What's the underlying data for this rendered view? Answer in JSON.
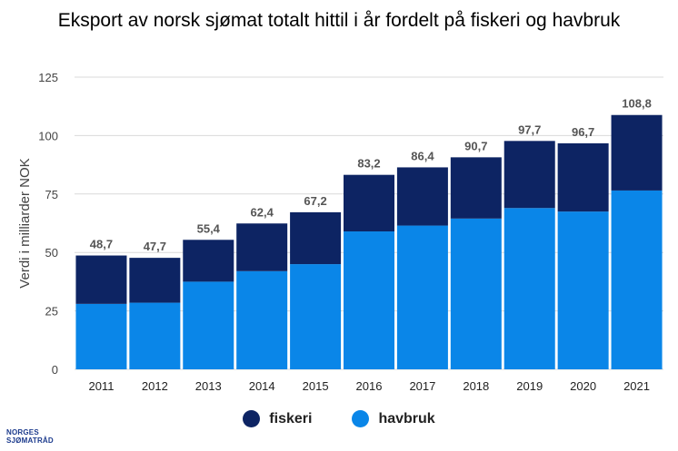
{
  "title": "Eksport av norsk sjømat totalt hittil i år fordelt på fiskeri og havbruk",
  "logo": {
    "line1": "NORGES",
    "line2": "SJØMATRÅD"
  },
  "colors": {
    "fiskeri": "#0d2463",
    "havbruk": "#0a86e8",
    "grid": "#d9d9d9",
    "axis_text": "#444444",
    "label_text": "#555555"
  },
  "legend": [
    {
      "name": "fiskeri",
      "color": "#0d2463"
    },
    {
      "name": "havbruk",
      "color": "#0a86e8"
    }
  ],
  "chart_data": {
    "type": "bar",
    "stacked": true,
    "title": "Eksport av norsk sjømat totalt hittil i år fordelt på fiskeri og havbruk",
    "xlabel": "",
    "ylabel": "Verdi i milliarder NOK",
    "ylim": [
      0,
      125
    ],
    "yticks": [
      0,
      25,
      50,
      75,
      100,
      125
    ],
    "grid": true,
    "legend_position": "bottom",
    "categories": [
      "2011",
      "2012",
      "2013",
      "2014",
      "2015",
      "2016",
      "2017",
      "2018",
      "2019",
      "2020",
      "2021"
    ],
    "series": [
      {
        "name": "havbruk",
        "values": [
          28,
          28.5,
          37.5,
          42,
          45,
          59,
          61.5,
          64.5,
          69,
          67.5,
          76.5
        ]
      },
      {
        "name": "fiskeri",
        "values": [
          20.7,
          19.2,
          17.9,
          20.4,
          22.2,
          24.2,
          24.9,
          26.2,
          28.7,
          29.2,
          32.3
        ]
      }
    ],
    "total_labels": [
      "48,7",
      "47,7",
      "55,4",
      "62,4",
      "67,2",
      "83,2",
      "86,4",
      "90,7",
      "97,7",
      "96,7",
      "108,8"
    ]
  }
}
